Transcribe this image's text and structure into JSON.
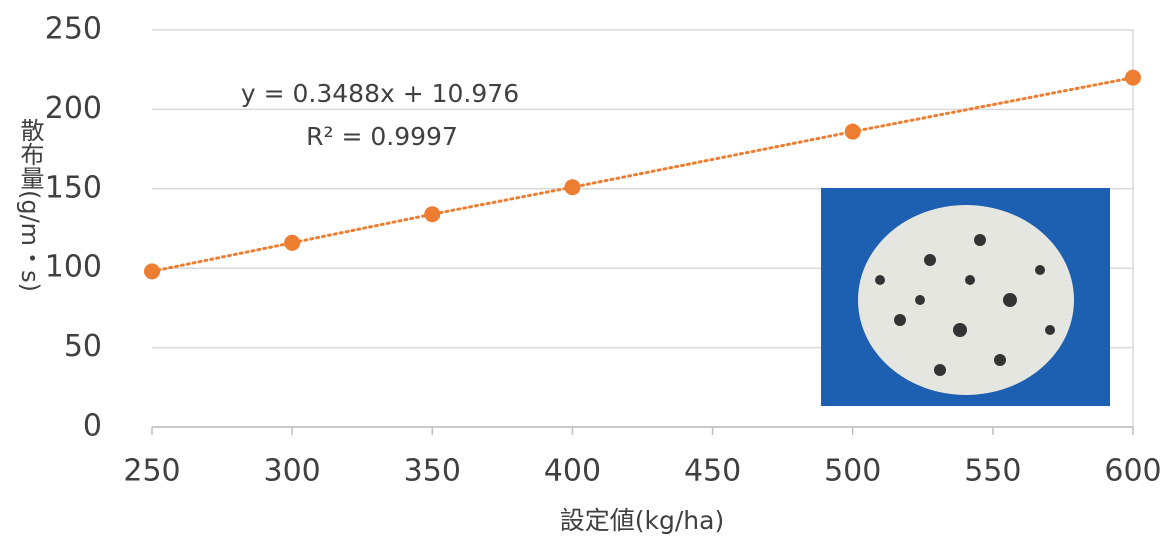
{
  "chart_data": {
    "type": "scatter",
    "xlabel": "設定値(kg/ha)",
    "ylabel": "散布量(g/m・s)",
    "annotations": [
      "y = 0.3488x + 10.976",
      "R² = 0.9997"
    ],
    "x": [
      250,
      300,
      350,
      400,
      500,
      600
    ],
    "series": [
      {
        "name": null,
        "color": "#ed7d31",
        "values": [
          98,
          116,
          134,
          151,
          186,
          220
        ]
      }
    ],
    "xlim": [
      250,
      600
    ],
    "xticks": [
      250,
      300,
      350,
      400,
      450,
      500,
      550,
      600
    ],
    "ylim": [
      0,
      250
    ],
    "yticks": [
      0,
      50,
      100,
      150,
      200,
      250
    ],
    "grid": true
  }
}
